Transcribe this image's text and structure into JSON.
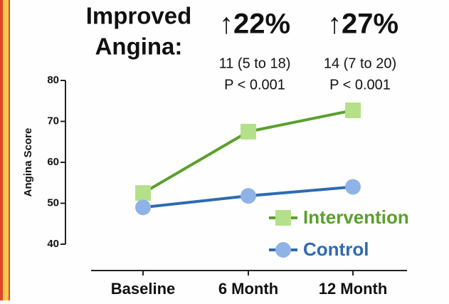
{
  "chart_data": {
    "type": "line",
    "annotations": [
      "Improved",
      "Angina:",
      "↑22%",
      "↑27%",
      "11 (5 to 18)",
      "P < 0.001",
      "14 (7 to 20)",
      "P < 0.001"
    ],
    "ylabel": "Angina Score",
    "categories": [
      "Baseline",
      "6 Month",
      "12 Month"
    ],
    "series": [
      {
        "name": "Intervention",
        "color": "#5aa02c",
        "marker_color": "#b5e08a",
        "marker": "square",
        "values": [
          52.5,
          67.5,
          72.7
        ]
      },
      {
        "name": "Control",
        "color": "#2e6bb0",
        "marker_color": "#8fb3e6",
        "marker": "circle",
        "values": [
          49,
          51.8,
          54
        ]
      }
    ],
    "ylim": [
      40,
      80
    ],
    "yticks": [
      40,
      50,
      60,
      70,
      80
    ],
    "grid": false,
    "legend": "lower right"
  }
}
